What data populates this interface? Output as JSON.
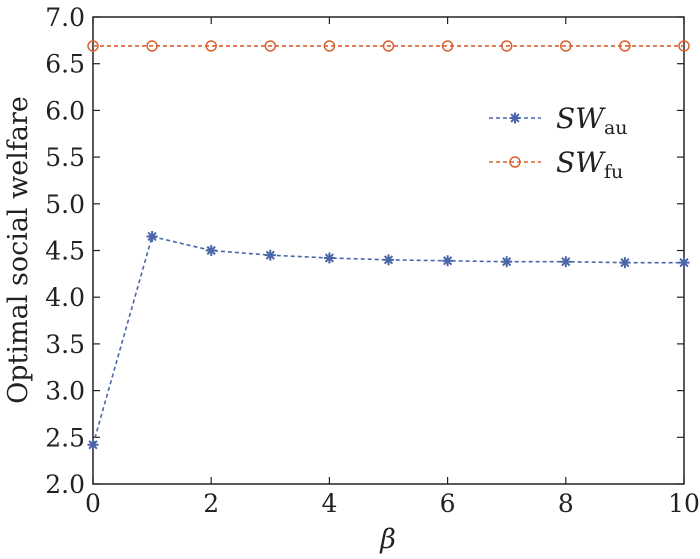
{
  "chart_data": {
    "type": "line",
    "xlabel": "β",
    "ylabel": "Optimal social welfare",
    "xlim": [
      0,
      10
    ],
    "ylim": [
      2.0,
      7.0
    ],
    "x_ticks": [
      "0",
      "2",
      "4",
      "6",
      "8",
      "10"
    ],
    "y_ticks": [
      "2.0",
      "2.5",
      "3.0",
      "3.5",
      "4.0",
      "4.5",
      "5.0",
      "5.5",
      "6.0",
      "6.5",
      "7.0"
    ],
    "x": [
      0,
      1,
      2,
      3,
      4,
      5,
      6,
      7,
      8,
      9,
      10
    ],
    "series": [
      {
        "name": "SW",
        "subscript": "au",
        "color": "#4a66a8",
        "marker": "asterisk",
        "values": [
          2.42,
          4.65,
          4.5,
          4.45,
          4.42,
          4.4,
          4.39,
          4.38,
          4.38,
          4.37,
          4.37
        ]
      },
      {
        "name": "SW",
        "subscript": "fu",
        "color": "#d8612e",
        "marker": "circle",
        "values": [
          6.69,
          6.69,
          6.69,
          6.69,
          6.69,
          6.69,
          6.69,
          6.69,
          6.69,
          6.69,
          6.69
        ]
      }
    ],
    "grid": false,
    "legend_position": "upper-right"
  }
}
